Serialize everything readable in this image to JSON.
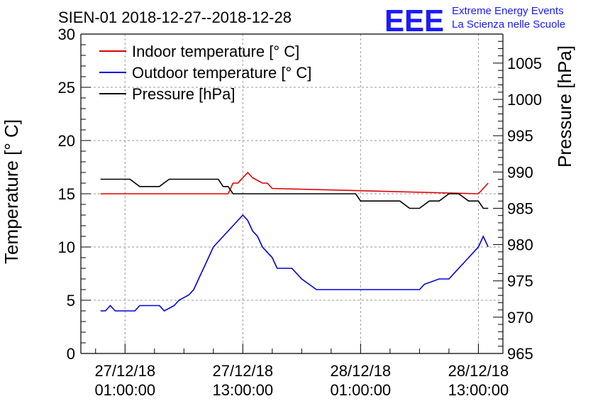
{
  "chart_data": {
    "type": "line",
    "title": "SIEN-01 2018-12-27--2018-12-28",
    "logo": {
      "mark": "EEE",
      "line1": "Extreme Energy Events",
      "line2": "La Scienza nelle Scuole"
    },
    "ylabel_left": "Temperature [° C]",
    "ylabel_right": "Pressure [hPa]",
    "ylim_left": [
      0,
      30
    ],
    "ylim_right": [
      965,
      1009
    ],
    "xlim_hours": [
      -4.5,
      38.5
    ],
    "y_ticks_left": [
      "0",
      "5",
      "10",
      "15",
      "20",
      "25",
      "30"
    ],
    "y_ticks_right": [
      "965",
      "970",
      "975",
      "980",
      "985",
      "990",
      "995",
      "1000",
      "1005"
    ],
    "x_ticks": [
      {
        "hour": 0,
        "date": "27/12/18",
        "time": "01:00:00"
      },
      {
        "hour": 12,
        "date": "27/12/18",
        "time": "13:00:00"
      },
      {
        "hour": 24,
        "date": "28/12/18",
        "time": "01:00:00"
      },
      {
        "hour": 36,
        "date": "28/12/18",
        "time": "13:00:00"
      }
    ],
    "grid": true,
    "legend_position": "top-left",
    "series": [
      {
        "name": "Indoor temperature [° C]",
        "axis": "left",
        "color": "#dd0000",
        "x": [
          -2.5,
          8.5,
          9.0,
          10.5,
          11.0,
          11.5,
          12.0,
          12.5,
          13.0,
          14.0,
          14.5,
          15.0,
          36.0,
          36.5,
          37.0
        ],
        "y": [
          15,
          15,
          15,
          15,
          16,
          16,
          16.5,
          17,
          16.5,
          16,
          16,
          15.5,
          15,
          15.5,
          16
        ]
      },
      {
        "name": "Outdoor temperature [° C]",
        "axis": "left",
        "color": "#0000dd",
        "x": [
          -2.5,
          -2.0,
          -1.5,
          -1.0,
          1.0,
          1.5,
          3.5,
          4.0,
          5.0,
          5.5,
          6.5,
          7.0,
          7.5,
          8.0,
          8.5,
          9.0,
          9.5,
          10.0,
          11.0,
          11.5,
          12.0,
          12.5,
          13.0,
          13.5,
          14.0,
          15.0,
          15.5,
          17.0,
          18.0,
          19.5,
          21.5,
          30.0,
          30.5,
          32.0,
          33.0,
          34.0,
          35.0,
          36.0,
          36.5,
          37.0
        ],
        "y": [
          4,
          4,
          4.5,
          4,
          4,
          4.5,
          4.5,
          4,
          4.5,
          5,
          5.5,
          6,
          7,
          8,
          9,
          10,
          10.5,
          11,
          12,
          12.5,
          13,
          12.5,
          11.5,
          11,
          10,
          9,
          8,
          8,
          7,
          6,
          6,
          6,
          6.5,
          7,
          7,
          8,
          9,
          10,
          11,
          10
        ]
      },
      {
        "name": "Pressure [hPa]",
        "axis": "right",
        "color": "#000000",
        "x": [
          -2.5,
          0.5,
          1.5,
          3.5,
          4.5,
          9.5,
          10.0,
          10.5,
          11.0,
          23.5,
          24.0,
          26.0,
          27.0,
          28.0,
          29.0,
          30.0,
          31.0,
          32.0,
          33.0,
          34.0,
          35.0,
          36.0,
          36.5,
          37.0
        ],
        "y": [
          989,
          989,
          988,
          988,
          989,
          989,
          988,
          988,
          987,
          987,
          986,
          986,
          986,
          986,
          985,
          985,
          986,
          986,
          987,
          987,
          986,
          986,
          985,
          985
        ]
      }
    ]
  }
}
